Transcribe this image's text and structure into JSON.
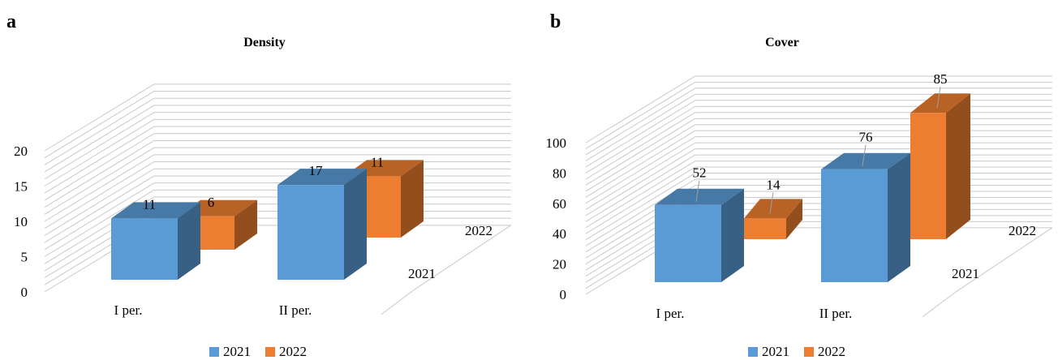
{
  "colors": {
    "s2021": "#5b9bd5",
    "s2022": "#ed7d31",
    "grid": "#c9c9c9",
    "leader": "#9e9e9e"
  },
  "panels": [
    {
      "letter": "a",
      "title": "Density"
    },
    {
      "letter": "b",
      "title": "Cover"
    }
  ],
  "chart_data": [
    {
      "type": "bar",
      "style": "3d-clustered-column",
      "title": "Density",
      "categories": [
        "I per.",
        "II per."
      ],
      "depth_labels": [
        "2021",
        "2022"
      ],
      "series": [
        {
          "name": "2021",
          "values": [
            11,
            17
          ],
          "labels": [
            "11",
            "17"
          ]
        },
        {
          "name": "2022",
          "values": [
            6,
            11
          ],
          "labels": [
            "6",
            "11"
          ]
        }
      ],
      "ylim": [
        0,
        20
      ],
      "yticks": [
        "0",
        "5",
        "10",
        "15",
        "20"
      ],
      "grid": true,
      "legend": "bottom"
    },
    {
      "type": "bar",
      "style": "3d-clustered-column",
      "title": "Cover",
      "categories": [
        "I per.",
        "II per."
      ],
      "depth_labels": [
        "2021",
        "2022"
      ],
      "series": [
        {
          "name": "2021",
          "values": [
            52,
            76
          ],
          "labels": [
            "52",
            "76"
          ]
        },
        {
          "name": "2022",
          "values": [
            14,
            85
          ],
          "labels": [
            "14",
            "85"
          ]
        }
      ],
      "ylim": [
        0,
        100
      ],
      "yticks": [
        "0",
        "20",
        "40",
        "60",
        "80",
        "100"
      ],
      "grid": true,
      "legend": "bottom"
    }
  ]
}
